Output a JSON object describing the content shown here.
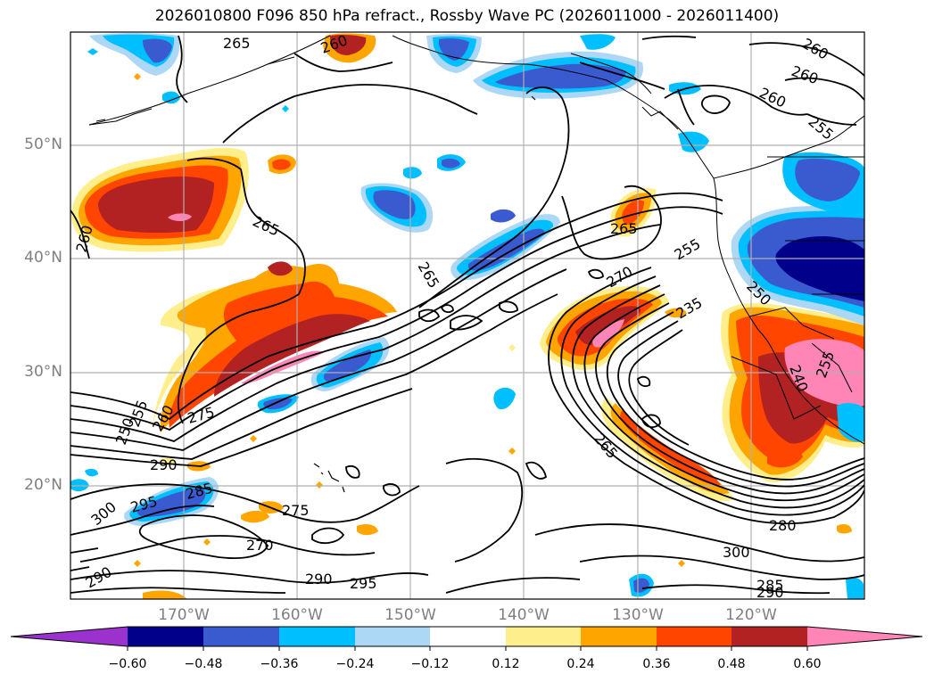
{
  "title": "2026010800 F096 850 hPa refract., Rossby Wave PC (2026011000 - 2026011400)",
  "lat_labels": [
    "50°N",
    "40°N",
    "30°N",
    "20°N"
  ],
  "lon_labels": [
    "170°W",
    "160°W",
    "150°W",
    "140°W",
    "130°W",
    "120°W"
  ],
  "colorbar": {
    "colors": [
      "#9b32cd",
      "#00008b",
      "#3a5ad0",
      "#00bfff",
      "#add8f5",
      "#ffffff",
      "#ffee8c",
      "#ffa500",
      "#ff4500",
      "#b22222",
      "#ff85b6"
    ],
    "tick_labels": [
      "−0.60",
      "−0.48",
      "−0.36",
      "−0.24",
      "−0.12",
      "0.12",
      "0.24",
      "0.36",
      "0.48",
      "0.60"
    ]
  },
  "contour_labels": [
    "265",
    "260",
    "260",
    "260",
    "255",
    "260",
    "265",
    "265",
    "265",
    "270",
    "255",
    "235",
    "250",
    "250",
    "255",
    "260",
    "275",
    "290",
    "285",
    "295",
    "300",
    "275",
    "270",
    "265",
    "280",
    "300",
    "285",
    "290",
    "290",
    "295",
    "240",
    "255"
  ]
}
